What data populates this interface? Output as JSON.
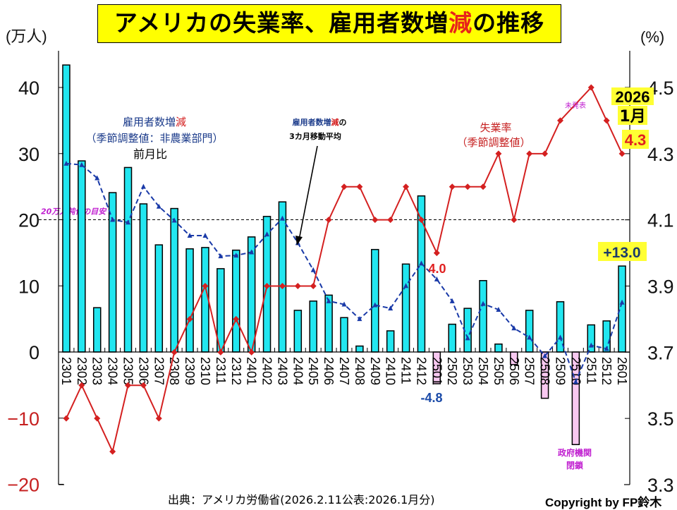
{
  "title": {
    "part1": "アメリカの失業率、雇用者数増",
    "highlight": "減",
    "part2": "の推移"
  },
  "left_unit": "(万人)",
  "right_unit": "(%)",
  "source": "出典：アメリカ労働省(2026.2.11公表:2026.1月分)",
  "copyright": "Copyright by FP鈴木",
  "colors": {
    "bar_positive": "#22e6f0",
    "bar_negative": "#f8c8f0",
    "unemployment_line": "#d42020",
    "moving_avg_line": "#1a3aa8",
    "title_bg": "#ffff00",
    "highlight_bg": "#ffff33",
    "annotation_magenta": "#c020d0"
  },
  "chart_data": {
    "type": "bar",
    "title": "アメリカの失業率、雇用者数増減の推移",
    "xlabel": "",
    "ylabel_left": "(万人)",
    "ylabel_right": "(%)",
    "ylim_left": [
      -20,
      45
    ],
    "ylim_right": [
      3.3,
      4.5
    ],
    "left_ticks": [
      40,
      30,
      20,
      10,
      0,
      -10,
      -20
    ],
    "right_ticks": [
      "4.5",
      "4.3",
      "4.1",
      "3.9",
      "3.7",
      "3.5",
      "3.3"
    ],
    "reference_line": {
      "value": 20,
      "axis": "left",
      "label": "20万人鈍化の目安"
    },
    "categories": [
      "2301",
      "2302",
      "2303",
      "2304",
      "2305",
      "2306",
      "2307",
      "2308",
      "2309",
      "2310",
      "2311",
      "2312",
      "2401",
      "2402",
      "2403",
      "2404",
      "2405",
      "2406",
      "2407",
      "2408",
      "2409",
      "2410",
      "2411",
      "2412",
      "2501",
      "2502",
      "2503",
      "2504",
      "2505",
      "2506",
      "2507",
      "2508",
      "2509",
      "2510",
      "2511",
      "2512",
      "2601"
    ],
    "series": [
      {
        "name": "雇用者数増減(季節調整値:非農業部門)前月比",
        "type": "bar",
        "axis": "left",
        "values": [
          43.4,
          28.9,
          6.7,
          24.1,
          27.9,
          22.4,
          16.2,
          21.7,
          15.6,
          15.8,
          12.6,
          15.4,
          17.4,
          20.5,
          22.7,
          6.3,
          7.7,
          8.6,
          5.2,
          0.9,
          15.5,
          3.2,
          13.3,
          23.6,
          -4.8,
          4.2,
          6.6,
          10.8,
          1.2,
          -1.9,
          6.3,
          -7.0,
          7.6,
          -14.0,
          4.1,
          4.7,
          13.0
        ]
      },
      {
        "name": "雇用者数増減の3カ月移動平均",
        "type": "line",
        "axis": "left",
        "values": [
          28.5,
          28.3,
          26.3,
          20.0,
          19.6,
          25.0,
          22.0,
          19.9,
          17.6,
          17.6,
          14.5,
          14.6,
          15.1,
          17.8,
          20.2,
          16.5,
          12.4,
          7.7,
          7.2,
          5.0,
          7.1,
          6.6,
          10.0,
          13.4,
          11.0,
          7.7,
          2.1,
          7.3,
          6.4,
          3.6,
          2.2,
          -0.6,
          2.2,
          -4.5,
          1.0,
          0.5,
          7.5
        ]
      },
      {
        "name": "失業率(季節調整値)",
        "type": "line",
        "axis": "right",
        "values": [
          3.5,
          3.6,
          3.5,
          3.4,
          3.6,
          3.6,
          3.5,
          3.7,
          3.8,
          3.9,
          3.7,
          3.8,
          3.7,
          3.9,
          3.9,
          3.9,
          3.9,
          4.1,
          4.2,
          4.2,
          4.1,
          4.1,
          4.2,
          4.1,
          4.0,
          4.2,
          4.2,
          4.2,
          4.3,
          4.1,
          4.3,
          4.3,
          4.4,
          null,
          4.5,
          4.4,
          4.3
        ]
      }
    ],
    "annotations": {
      "employment_label_line1": "雇用者数増",
      "employment_label_line1_red": "減",
      "employment_label_line2": "（季節調整値：非農業部門）",
      "employment_label_line3": "前月比",
      "ma_label_line1": "雇用者数増",
      "ma_label_line1_red": "減",
      "ma_label_line1_end": "の",
      "ma_label_line2": "3カ月移動平均",
      "unemp_label_line1": "失業率",
      "unemp_label_line2": "（季節調整値）",
      "unpublished": "未発表",
      "latest_year": "2026",
      "latest_month": "1月",
      "latest_unemployment": "4.3",
      "latest_payroll": "+13.0",
      "low_unemployment": "4.0",
      "jan25_payroll": "-4.8",
      "shutdown_line1": "政府機関",
      "shutdown_line2": "閉鎖"
    },
    "grid": false,
    "legend": "none"
  }
}
